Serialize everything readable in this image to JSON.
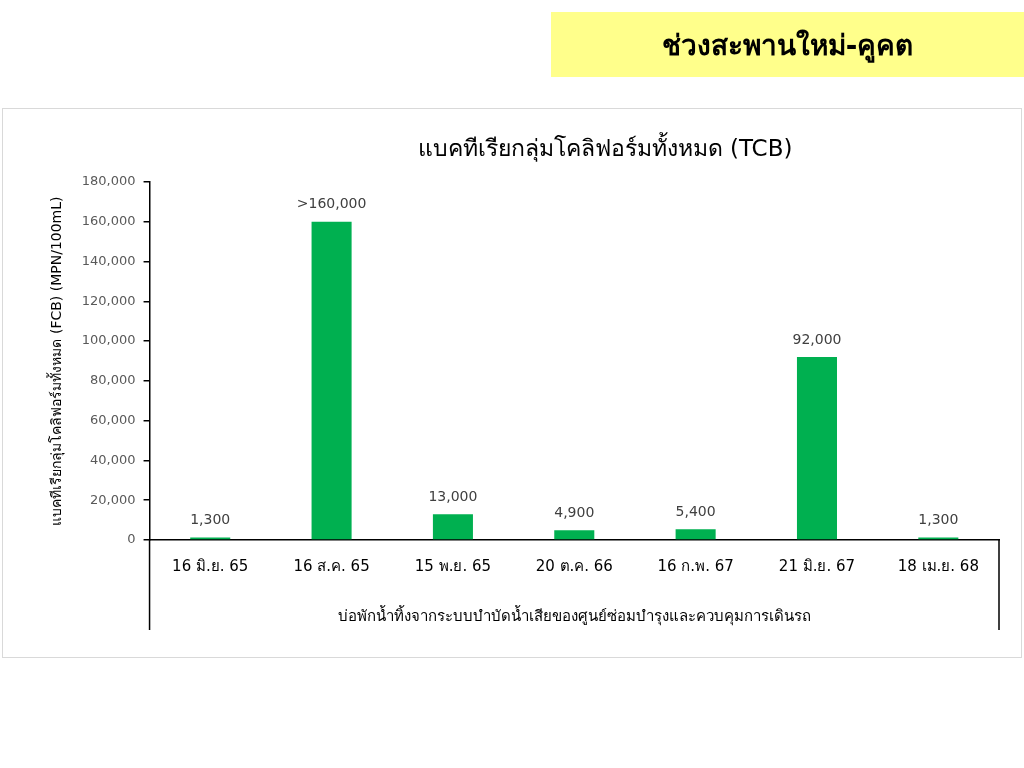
{
  "chart_data": {
    "type": "bar",
    "title": "ช่วงสะพานใหม่-คูคต",
    "subtitle": "แบคทีเรียกลุ่มโคลิฟอร์มทั้งหมด (TCB)",
    "xlabel": "บ่อพักน้ำทิ้งจากระบบบำบัดน้ำเสียของศูนย์ซ่อมบำรุงและควบคุมการเดินรถ",
    "ylabel": "แบคทีเรียกลุ่มโคลิฟอร์มทั้งหมด (FCB) (MPN/100mL)",
    "categories": [
      "16 มิ.ย. 65",
      "16 ส.ค. 65",
      "15 พ.ย. 65",
      "20 ต.ค. 66",
      "16 ก.พ. 67",
      "21 มิ.ย. 67",
      "18 เม.ย. 68"
    ],
    "values": [
      1300,
      160000,
      13000,
      4900,
      5400,
      92000,
      1300
    ],
    "value_labels": [
      "1,300",
      ">160,000",
      "13,000",
      "4,900",
      "5,400",
      "92,000",
      "1,300"
    ],
    "color": "#00b050",
    "ylim": [
      0,
      180000
    ],
    "yticks": [
      0,
      {
        "value": 20000,
        "label": "20,000"
      },
      {
        "value": 40000,
        "label": "40,000"
      },
      {
        "value": 60000,
        "label": "60,000"
      },
      {
        "value": 80000,
        "label": "80,000"
      },
      {
        "value": 100000,
        "label": "100,000"
      },
      {
        "value": 120000,
        "label": "120,000"
      },
      {
        "value": 140000,
        "label": "140,000"
      },
      {
        "value": 160000,
        "label": "160,000"
      },
      {
        "value": 180000,
        "label": "180,000"
      }
    ]
  }
}
